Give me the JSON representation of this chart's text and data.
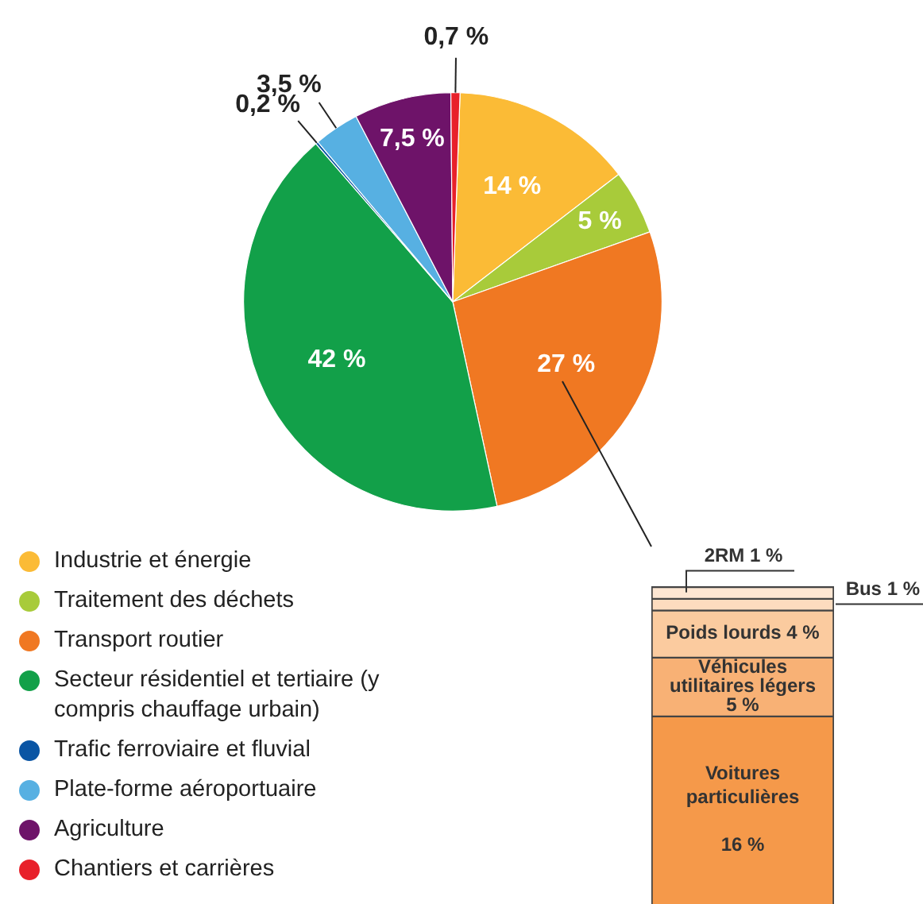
{
  "chart_data": [
    {
      "type": "pie",
      "categories": [
        "Industrie et énergie",
        "Traitement des déchets",
        "Transport routier",
        "Secteur résidentiel et tertiaire (y compris chauffage urbain)",
        "Trafic ferroviaire et fluvial",
        "Plate-forme aéroportuaire",
        "Agriculture",
        "Chantiers et carrières"
      ],
      "values": [
        14,
        5,
        27,
        42,
        0.2,
        3.5,
        7.5,
        0.7
      ],
      "colors": [
        "#fbbb36",
        "#a8cb3a",
        "#f07822",
        "#12a049",
        "#0a55a4",
        "#57b0e2",
        "#6e1369",
        "#e8202a"
      ],
      "value_labels": [
        "14 %",
        "5 %",
        "27 %",
        "42 %",
        "0,2 %",
        "3,5 %",
        "7,5 %",
        "0,7 %"
      ],
      "legend": "bottom left"
    },
    {
      "type": "bar",
      "stacked": true,
      "categories": [
        null
      ],
      "series": [
        {
          "name": "Voitures particulières",
          "color": "#f5994a",
          "values": [
            16
          ],
          "value_labels": [
            "16 %"
          ]
        },
        {
          "name": "Véhicules utilitaires légers",
          "color": "#f8b175",
          "values": [
            5
          ],
          "value_labels": [
            "5 %"
          ]
        },
        {
          "name": "Poids lourds",
          "color": "#fbcb9f",
          "values": [
            4
          ],
          "value_labels": [
            "4 %"
          ]
        },
        {
          "name": "Bus",
          "color": "#fddcbf",
          "values": [
            1
          ],
          "value_labels": [
            "1 %"
          ]
        },
        {
          "name": "2RM",
          "color": "#fde6d2",
          "values": [
            1
          ],
          "value_labels": [
            "1 %"
          ]
        }
      ]
    }
  ]
}
